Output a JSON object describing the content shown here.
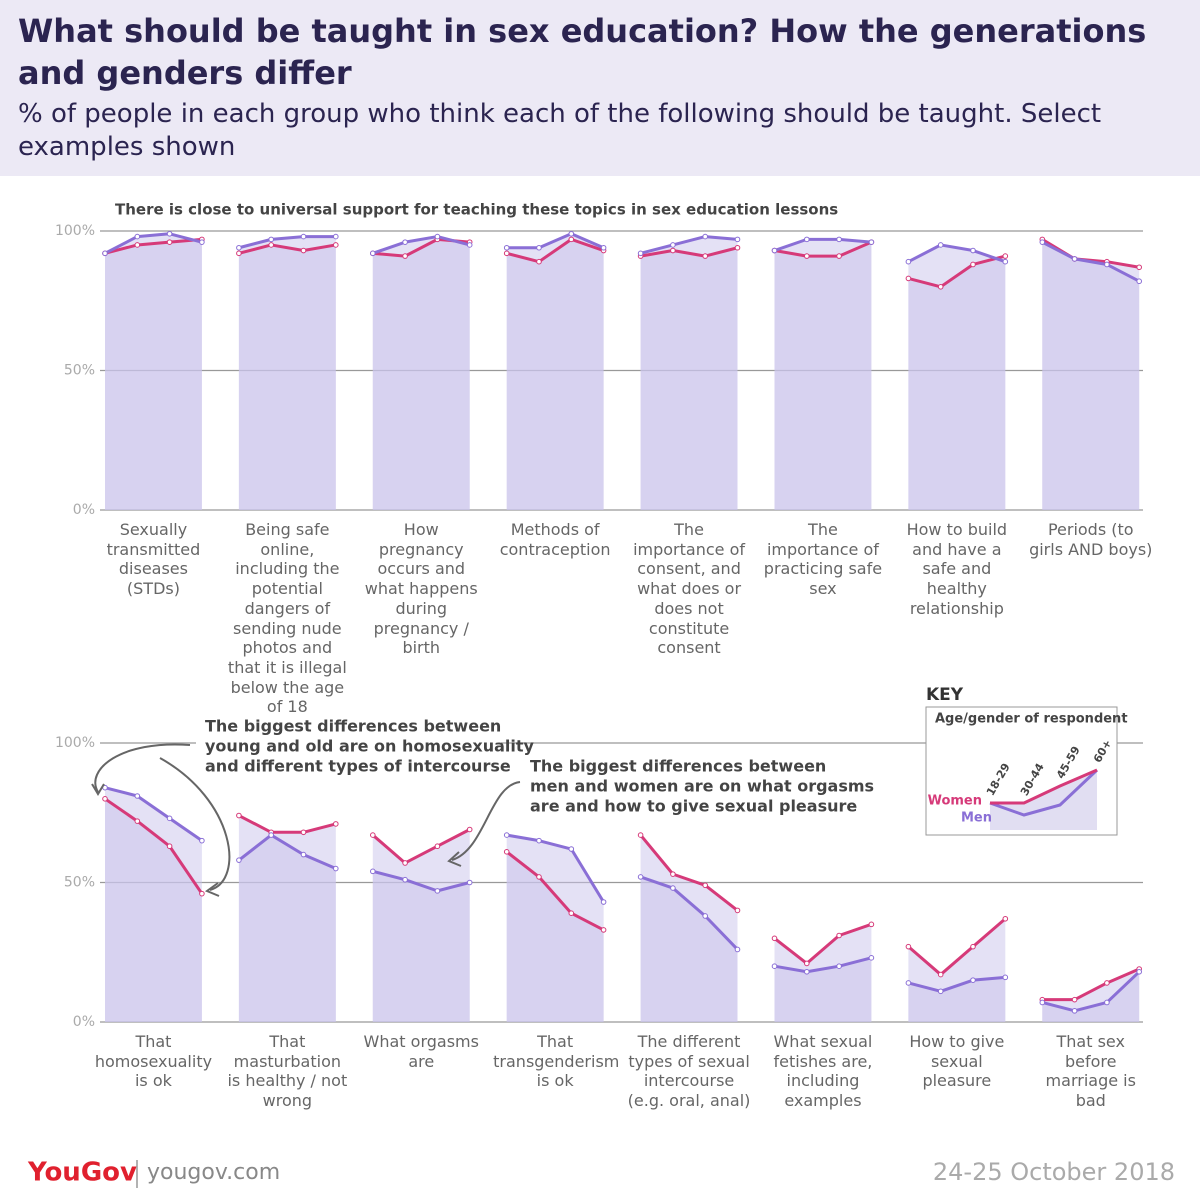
{
  "header": {
    "title": "What should be taught in sex education? How the generations and genders differ",
    "subtitle": "% of people in each group who think each of the following should be taught. Select examples shown"
  },
  "key": {
    "title": "KEY",
    "subtitle": "Age/gender of respondent",
    "ages": [
      "18-29",
      "30-44",
      "45-59",
      "60+"
    ]
  },
  "chart_data": [
    {
      "type": "line",
      "annotation": "There is close to universal support for teaching these topics in sex education lessons",
      "categories": [
        "Sexually transmitted diseases (STDs)",
        "Being safe online, including the potential dangers of sending nude photos and that it is illegal below the age of 18",
        "How pregnancy occurs and what happens during pregnancy / birth",
        "Methods of contraception",
        "The importance of consent, and what does or does not constitute consent",
        "The importance of practicing safe sex",
        "How to build and have a safe and healthy relationship",
        "Periods (to girls AND boys)"
      ],
      "ylim": [
        0,
        100
      ],
      "yticks": [
        {
          "value": 0,
          "label": "0%"
        },
        {
          "value": 50,
          "label": "50%"
        },
        {
          "value": 100,
          "label": "100%"
        }
      ],
      "series": [
        {
          "name": "Women",
          "color": "#d63a79",
          "values": [
            [
              92,
              95,
              96,
              97
            ],
            [
              92,
              95,
              93,
              95
            ],
            [
              92,
              91,
              97,
              96
            ],
            [
              92,
              89,
              97,
              93
            ],
            [
              91,
              93,
              91,
              94
            ],
            [
              93,
              91,
              91,
              96
            ],
            [
              83,
              80,
              88,
              91
            ],
            [
              97,
              90,
              89,
              87
            ]
          ]
        },
        {
          "name": "Men",
          "color": "#8a6fd6",
          "values": [
            [
              92,
              98,
              99,
              96
            ],
            [
              94,
              97,
              98,
              98
            ],
            [
              92,
              96,
              98,
              95
            ],
            [
              94,
              94,
              99,
              94
            ],
            [
              92,
              95,
              98,
              97
            ],
            [
              93,
              97,
              97,
              96
            ],
            [
              89,
              95,
              93,
              89
            ],
            [
              96,
              90,
              88,
              82
            ]
          ]
        }
      ]
    },
    {
      "type": "line",
      "annotations": [
        [
          "The biggest differences between",
          "young and old are on homosexuality",
          "and different types of intercourse"
        ],
        [
          "The biggest differences between",
          "men and women are on what orgasms",
          "are and how to give sexual pleasure"
        ]
      ],
      "categories": [
        "That homosexuality is ok",
        "That masturbation is healthy / not wrong",
        "What orgasms are",
        "That transgenderism is ok",
        "The different types of sexual intercourse (e.g. oral, anal)",
        "What sexual fetishes are, including examples",
        "How to give sexual pleasure",
        "That sex before marriage is bad"
      ],
      "ylim": [
        0,
        100
      ],
      "yticks": [
        {
          "value": 0,
          "label": "0%"
        },
        {
          "value": 50,
          "label": "50%"
        },
        {
          "value": 100,
          "label": "100%"
        }
      ],
      "series": [
        {
          "name": "Women",
          "color": "#d63a79",
          "values": [
            [
              80,
              72,
              63,
              46
            ],
            [
              74,
              68,
              68,
              71
            ],
            [
              67,
              57,
              63,
              69
            ],
            [
              61,
              52,
              39,
              33
            ],
            [
              67,
              53,
              49,
              40
            ],
            [
              30,
              21,
              31,
              35
            ],
            [
              27,
              17,
              27,
              37
            ],
            [
              8,
              8,
              14,
              19
            ]
          ]
        },
        {
          "name": "Men",
          "color": "#8a6fd6",
          "values": [
            [
              84,
              81,
              73,
              65
            ],
            [
              58,
              67,
              60,
              55
            ],
            [
              54,
              51,
              47,
              50
            ],
            [
              67,
              65,
              62,
              43
            ],
            [
              52,
              48,
              38,
              26
            ],
            [
              20,
              18,
              20,
              23
            ],
            [
              14,
              11,
              15,
              16
            ],
            [
              7,
              4,
              7,
              18
            ]
          ]
        }
      ]
    }
  ],
  "footer": {
    "brand": "YouGov",
    "site": "yougov.com",
    "date": "24-25 October 2018"
  }
}
